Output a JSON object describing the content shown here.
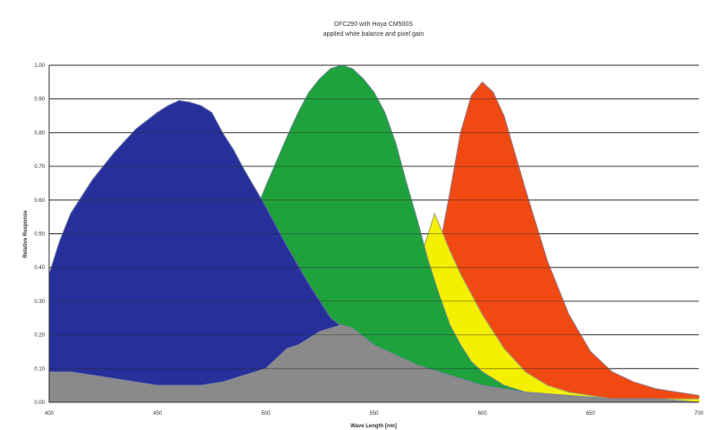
{
  "chart_data": {
    "type": "area",
    "title": "DFC290 with Hoya CM500S",
    "subtitle": "applied white balance and pixel gain",
    "xlabel": "Wave Length [nm]",
    "ylabel": "Relative Response",
    "xlim": [
      400,
      700
    ],
    "ylim": [
      0,
      1
    ],
    "x_ticks": [
      "400",
      "450",
      "500",
      "550",
      "600",
      "650",
      "700"
    ],
    "y_ticks": [
      "0.00",
      "0.10",
      "0.20",
      "0.30",
      "0.40",
      "0.50",
      "0.60",
      "0.70",
      "0.80",
      "0.90",
      "1.00"
    ],
    "grid": true,
    "series": [
      {
        "color": "#f04a12",
        "x": [
          400,
          410,
          420,
          430,
          440,
          450,
          460,
          470,
          480,
          490,
          500,
          510,
          520,
          530,
          540,
          550,
          560,
          570,
          580,
          585,
          590,
          595,
          600,
          605,
          610,
          620,
          630,
          640,
          650,
          660,
          670,
          680,
          690,
          700
        ],
        "y": [
          0.23,
          0.18,
          0.14,
          0.11,
          0.1,
          0.1,
          0.1,
          0.1,
          0.1,
          0.11,
          0.12,
          0.13,
          0.13,
          0.13,
          0.14,
          0.16,
          0.2,
          0.28,
          0.45,
          0.62,
          0.8,
          0.91,
          0.95,
          0.92,
          0.85,
          0.63,
          0.42,
          0.26,
          0.15,
          0.09,
          0.06,
          0.04,
          0.03,
          0.02
        ]
      },
      {
        "color": "#f5ef00",
        "x": [
          400,
          450,
          500,
          520,
          530,
          540,
          550,
          560,
          570,
          578,
          585,
          590,
          600,
          610,
          620,
          630,
          640,
          650,
          660,
          680,
          700
        ],
        "y": [
          0.08,
          0.06,
          0.09,
          0.17,
          0.22,
          0.24,
          0.26,
          0.3,
          0.4,
          0.56,
          0.45,
          0.38,
          0.26,
          0.16,
          0.09,
          0.05,
          0.03,
          0.02,
          0.01,
          0.01,
          0.01
        ]
      },
      {
        "color": "#1fa23c",
        "x": [
          400,
          410,
          420,
          430,
          440,
          450,
          460,
          470,
          480,
          490,
          500,
          510,
          515,
          520,
          525,
          530,
          535,
          540,
          545,
          550,
          555,
          560,
          565,
          570,
          575,
          580,
          585,
          590,
          595,
          600,
          610,
          620,
          630,
          640,
          650,
          660,
          680,
          700
        ],
        "y": [
          0.08,
          0.09,
          0.1,
          0.11,
          0.12,
          0.13,
          0.16,
          0.23,
          0.34,
          0.48,
          0.64,
          0.79,
          0.86,
          0.92,
          0.96,
          0.99,
          1.0,
          0.99,
          0.96,
          0.92,
          0.86,
          0.77,
          0.65,
          0.54,
          0.42,
          0.32,
          0.23,
          0.17,
          0.12,
          0.09,
          0.05,
          0.03,
          0.02,
          0.01,
          0.01,
          0.0,
          0.0,
          0.0
        ]
      },
      {
        "color": "#27309a",
        "x": [
          400,
          405,
          410,
          420,
          430,
          440,
          450,
          455,
          460,
          465,
          470,
          475,
          480,
          485,
          490,
          500,
          510,
          520,
          530,
          540,
          550,
          560,
          570,
          580,
          590,
          600,
          620,
          640,
          660,
          680,
          700
        ],
        "y": [
          0.38,
          0.48,
          0.56,
          0.66,
          0.74,
          0.81,
          0.86,
          0.88,
          0.895,
          0.89,
          0.88,
          0.86,
          0.8,
          0.75,
          0.69,
          0.58,
          0.46,
          0.35,
          0.25,
          0.2,
          0.16,
          0.13,
          0.11,
          0.09,
          0.07,
          0.05,
          0.03,
          0.02,
          0.01,
          0.01,
          0.0
        ]
      },
      {
        "color": "#8a8a8a",
        "x": [
          400,
          410,
          420,
          430,
          440,
          450,
          460,
          470,
          480,
          490,
          500,
          505,
          510,
          515,
          520,
          525,
          530,
          535,
          540,
          550,
          560,
          570,
          580,
          590,
          600,
          620,
          640,
          660,
          680,
          700
        ],
        "y": [
          0.09,
          0.09,
          0.08,
          0.07,
          0.06,
          0.05,
          0.05,
          0.05,
          0.06,
          0.08,
          0.1,
          0.13,
          0.16,
          0.17,
          0.19,
          0.21,
          0.22,
          0.23,
          0.22,
          0.17,
          0.14,
          0.11,
          0.09,
          0.07,
          0.05,
          0.03,
          0.02,
          0.01,
          0.01,
          0.0
        ]
      }
    ]
  }
}
